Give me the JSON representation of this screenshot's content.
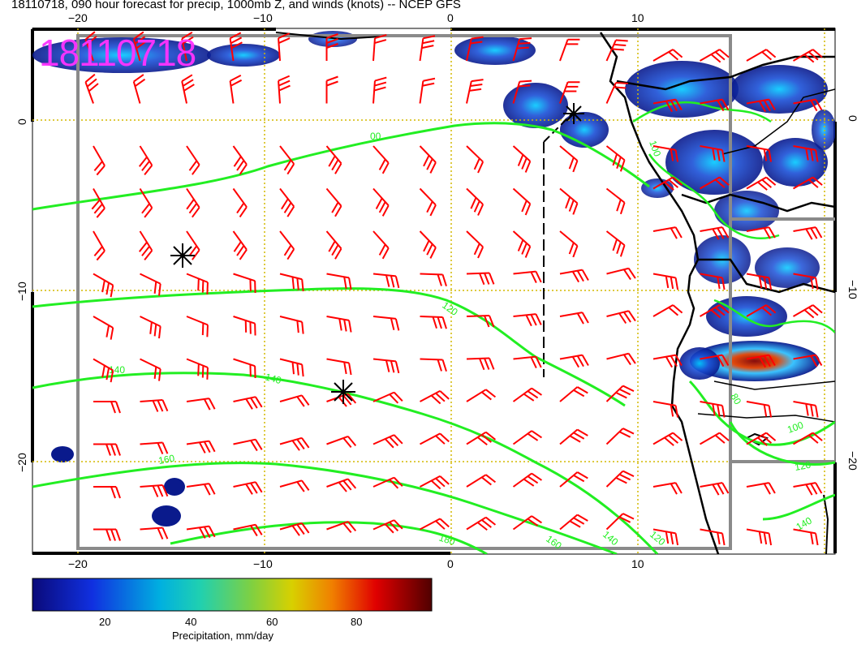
{
  "title": "18110718, 090 hour forecast for precip, 1000mb Z, and winds (knots) -- NCEP GFS",
  "date_stamp": "18110718",
  "colorbar": {
    "title": "Precipitation, mm/day",
    "ticks": [
      "20",
      "40",
      "60",
      "80"
    ]
  },
  "axes": {
    "lon_labels": [
      "−20",
      "−10",
      "0",
      "10"
    ],
    "lat_labels": [
      "0",
      "−10",
      "−20"
    ]
  },
  "contour_labels": [
    "00",
    "120",
    "140",
    "140",
    "160",
    "180",
    "160",
    "140",
    "120",
    "100",
    "80",
    "100",
    "120",
    "140"
  ],
  "colors": {
    "wind_barb": "#ff0000",
    "contour": "#00ee00",
    "grid": "#d4b800",
    "coast": "#000000",
    "date_stamp": "#ff33ff"
  },
  "icons": [
    "storm-center-marker",
    "wind-barb"
  ]
}
